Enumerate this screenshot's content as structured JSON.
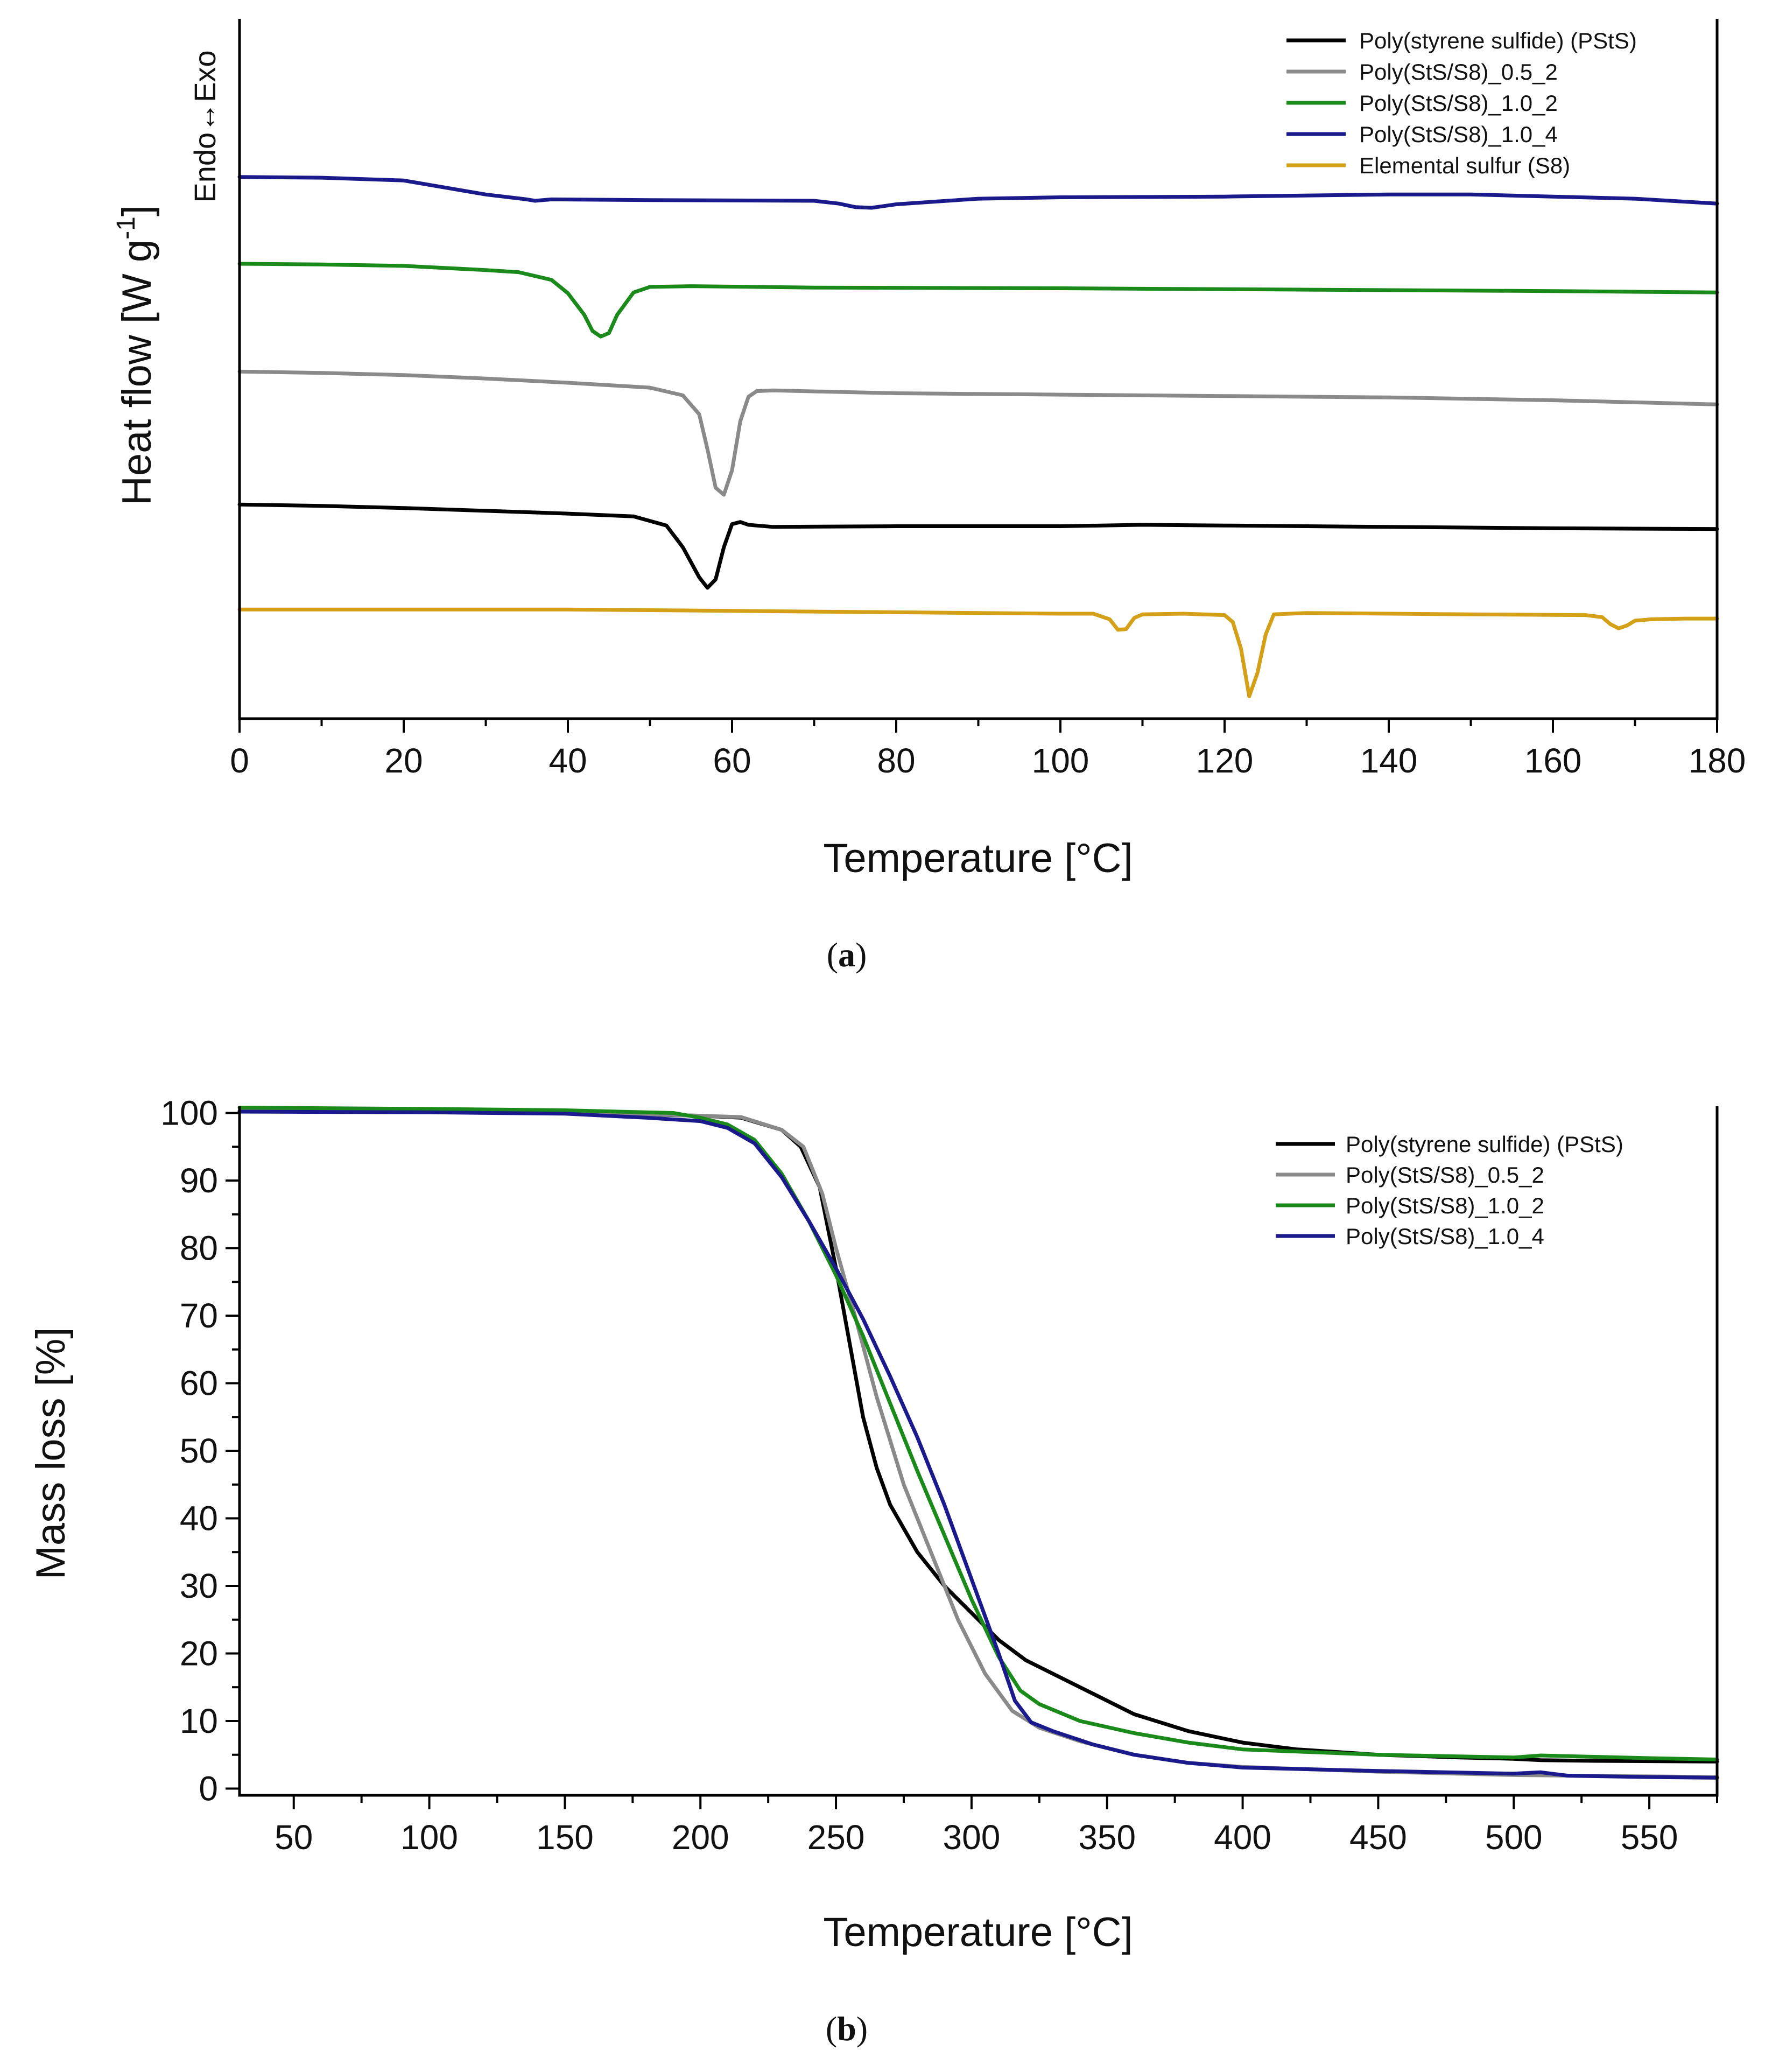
{
  "chart_data": [
    {
      "id": "a",
      "type": "line",
      "caption_label": "a",
      "xlabel": "Temperature [°C]",
      "ylabel": "Heat flow [W g",
      "ylabel_sup": "-1",
      "ylabel_suffix": "]",
      "direction_label": "Endo↔Exo",
      "xlim": [
        0,
        180
      ],
      "ylim": [
        0,
        100
      ],
      "xticks": [
        0,
        20,
        40,
        60,
        80,
        100,
        120,
        140,
        160,
        180
      ],
      "xticks_minor_step": 10,
      "y_ticks_shown": false,
      "legend_position": "top-right",
      "series": [
        {
          "name": "Poly(styrene sulfide) (PStS)",
          "color": "#000000",
          "points": [
            [
              0,
              30.6
            ],
            [
              10,
              30.4
            ],
            [
              20,
              30.1
            ],
            [
              30,
              29.7
            ],
            [
              40,
              29.3
            ],
            [
              48,
              28.9
            ],
            [
              52,
              27.6
            ],
            [
              54,
              24.5
            ],
            [
              56,
              20.2
            ],
            [
              57,
              18.7
            ],
            [
              58,
              19.9
            ],
            [
              59,
              24.5
            ],
            [
              60,
              27.8
            ],
            [
              61,
              28.1
            ],
            [
              62,
              27.7
            ],
            [
              65,
              27.4
            ],
            [
              80,
              27.5
            ],
            [
              100,
              27.5
            ],
            [
              110,
              27.7
            ],
            [
              120,
              27.6
            ],
            [
              140,
              27.4
            ],
            [
              160,
              27.2
            ],
            [
              180,
              27.1
            ]
          ]
        },
        {
          "name": "Poly(StS/S8)_0.5_2",
          "color": "#8a8a8a",
          "points": [
            [
              0,
              49.6
            ],
            [
              10,
              49.4
            ],
            [
              20,
              49.1
            ],
            [
              30,
              48.6
            ],
            [
              40,
              48.0
            ],
            [
              50,
              47.3
            ],
            [
              54,
              46.2
            ],
            [
              56,
              43.5
            ],
            [
              57,
              38.5
            ],
            [
              58,
              33.0
            ],
            [
              59,
              32.0
            ],
            [
              60,
              35.5
            ],
            [
              61,
              42.5
            ],
            [
              62,
              46.0
            ],
            [
              63,
              46.8
            ],
            [
              65,
              46.9
            ],
            [
              80,
              46.5
            ],
            [
              100,
              46.3
            ],
            [
              120,
              46.1
            ],
            [
              140,
              45.9
            ],
            [
              160,
              45.5
            ],
            [
              180,
              44.9
            ]
          ]
        },
        {
          "name": "Poly(StS/S8)_1.0_2",
          "color": "#1a8a1a",
          "points": [
            [
              0,
              65.0
            ],
            [
              10,
              64.9
            ],
            [
              20,
              64.7
            ],
            [
              30,
              64.1
            ],
            [
              34,
              63.8
            ],
            [
              38,
              62.7
            ],
            [
              40,
              60.8
            ],
            [
              42,
              57.7
            ],
            [
              43,
              55.4
            ],
            [
              44,
              54.6
            ],
            [
              45,
              55.1
            ],
            [
              46,
              57.7
            ],
            [
              48,
              60.9
            ],
            [
              50,
              61.7
            ],
            [
              55,
              61.8
            ],
            [
              70,
              61.6
            ],
            [
              100,
              61.5
            ],
            [
              130,
              61.3
            ],
            [
              160,
              61.1
            ],
            [
              180,
              60.9
            ]
          ]
        },
        {
          "name": "Poly(StS/S8)_1.0_4",
          "color": "#1a1a8c",
          "points": [
            [
              0,
              77.4
            ],
            [
              10,
              77.3
            ],
            [
              20,
              76.9
            ],
            [
              25,
              75.9
            ],
            [
              30,
              74.9
            ],
            [
              35,
              74.2
            ],
            [
              36,
              74.0
            ],
            [
              38,
              74.2
            ],
            [
              50,
              74.1
            ],
            [
              70,
              74.0
            ],
            [
              73,
              73.6
            ],
            [
              75,
              73.1
            ],
            [
              77,
              73.0
            ],
            [
              80,
              73.5
            ],
            [
              85,
              73.9
            ],
            [
              90,
              74.3
            ],
            [
              100,
              74.5
            ],
            [
              120,
              74.6
            ],
            [
              140,
              74.9
            ],
            [
              150,
              74.9
            ],
            [
              160,
              74.6
            ],
            [
              170,
              74.3
            ],
            [
              180,
              73.6
            ]
          ]
        },
        {
          "name": "Elemental sulfur (S8)",
          "color": "#d4a017",
          "points": [
            [
              0,
              15.6
            ],
            [
              20,
              15.6
            ],
            [
              40,
              15.6
            ],
            [
              60,
              15.4
            ],
            [
              80,
              15.2
            ],
            [
              100,
              15.0
            ],
            [
              104,
              15.0
            ],
            [
              106,
              14.2
            ],
            [
              107,
              12.7
            ],
            [
              108,
              12.8
            ],
            [
              109,
              14.4
            ],
            [
              110,
              14.9
            ],
            [
              115,
              15.0
            ],
            [
              120,
              14.8
            ],
            [
              121,
              13.8
            ],
            [
              122,
              10.0
            ],
            [
              123,
              3.2
            ],
            [
              124,
              6.5
            ],
            [
              125,
              12.0
            ],
            [
              126,
              14.9
            ],
            [
              130,
              15.1
            ],
            [
              150,
              14.9
            ],
            [
              164,
              14.8
            ],
            [
              166,
              14.5
            ],
            [
              167,
              13.5
            ],
            [
              168,
              12.9
            ],
            [
              169,
              13.3
            ],
            [
              170,
              14.0
            ],
            [
              172,
              14.2
            ],
            [
              176,
              14.3
            ],
            [
              180,
              14.3
            ]
          ]
        }
      ]
    },
    {
      "id": "b",
      "type": "line",
      "caption_label": "b",
      "xlabel": "Temperature [°C]",
      "ylabel": "Mass loss [%]",
      "xlim": [
        30,
        575
      ],
      "ylim": [
        -1,
        101
      ],
      "xticks": [
        50,
        100,
        150,
        200,
        250,
        300,
        350,
        400,
        450,
        500,
        550
      ],
      "xticks_minor_step": 25,
      "yticks": [
        0,
        10,
        20,
        30,
        40,
        50,
        60,
        70,
        80,
        90,
        100
      ],
      "yticks_minor_step": 5,
      "legend_position": "top-right",
      "series": [
        {
          "name": "Poly(styrene sulfide) (PStS)",
          "color": "#000000",
          "points": [
            [
              30,
              100.3
            ],
            [
              100,
              100.2
            ],
            [
              150,
              100.0
            ],
            [
              200,
              99.6
            ],
            [
              215,
              99.3
            ],
            [
              230,
              97.5
            ],
            [
              237,
              95.0
            ],
            [
              244,
              89.0
            ],
            [
              250,
              77.0
            ],
            [
              255,
              66.0
            ],
            [
              260,
              55.0
            ],
            [
              265,
              47.5
            ],
            [
              270,
              42.0
            ],
            [
              280,
              35.0
            ],
            [
              290,
              30.0
            ],
            [
              300,
              26.0
            ],
            [
              310,
              22.0
            ],
            [
              320,
              19.0
            ],
            [
              340,
              15.0
            ],
            [
              360,
              11.0
            ],
            [
              380,
              8.5
            ],
            [
              400,
              6.8
            ],
            [
              420,
              5.8
            ],
            [
              450,
              5.0
            ],
            [
              480,
              4.6
            ],
            [
              500,
              4.4
            ],
            [
              510,
              4.2
            ],
            [
              530,
              4.1
            ],
            [
              575,
              4.0
            ]
          ]
        },
        {
          "name": "Poly(StS/S8)_0.5_2",
          "color": "#8a8a8a",
          "points": [
            [
              30,
              100.3
            ],
            [
              100,
              100.2
            ],
            [
              150,
              100.1
            ],
            [
              200,
              99.6
            ],
            [
              215,
              99.4
            ],
            [
              230,
              97.5
            ],
            [
              238,
              95.0
            ],
            [
              245,
              88.0
            ],
            [
              250,
              80.0
            ],
            [
              257,
              70.0
            ],
            [
              265,
              58.0
            ],
            [
              275,
              45.0
            ],
            [
              285,
              35.0
            ],
            [
              295,
              25.0
            ],
            [
              305,
              17.0
            ],
            [
              315,
              11.5
            ],
            [
              325,
              9.0
            ],
            [
              340,
              7.0
            ],
            [
              360,
              5.0
            ],
            [
              380,
              3.8
            ],
            [
              400,
              3.2
            ],
            [
              450,
              2.5
            ],
            [
              500,
              2.0
            ],
            [
              550,
              1.8
            ],
            [
              575,
              1.7
            ]
          ]
        },
        {
          "name": "Poly(StS/S8)_1.0_2",
          "color": "#1a8a1a",
          "points": [
            [
              30,
              100.8
            ],
            [
              100,
              100.6
            ],
            [
              150,
              100.4
            ],
            [
              190,
              100.0
            ],
            [
              200,
              99.3
            ],
            [
              210,
              98.3
            ],
            [
              220,
              96.0
            ],
            [
              230,
              91.0
            ],
            [
              240,
              84.0
            ],
            [
              250,
              76.0
            ],
            [
              260,
              67.0
            ],
            [
              270,
              57.0
            ],
            [
              280,
              47.0
            ],
            [
              290,
              37.5
            ],
            [
              300,
              28.0
            ],
            [
              310,
              19.5
            ],
            [
              318,
              14.5
            ],
            [
              325,
              12.5
            ],
            [
              340,
              10.0
            ],
            [
              360,
              8.2
            ],
            [
              380,
              6.8
            ],
            [
              400,
              5.8
            ],
            [
              450,
              5.0
            ],
            [
              500,
              4.6
            ],
            [
              510,
              4.9
            ],
            [
              550,
              4.5
            ],
            [
              575,
              4.3
            ]
          ]
        },
        {
          "name": "Poly(StS/S8)_1.0_4",
          "color": "#1a1a8c",
          "points": [
            [
              30,
              100.2
            ],
            [
              100,
              100.1
            ],
            [
              150,
              99.9
            ],
            [
              180,
              99.3
            ],
            [
              200,
              98.8
            ],
            [
              210,
              97.8
            ],
            [
              220,
              95.5
            ],
            [
              230,
              90.5
            ],
            [
              240,
              84.0
            ],
            [
              250,
              77.0
            ],
            [
              260,
              69.5
            ],
            [
              270,
              61.0
            ],
            [
              280,
              52.0
            ],
            [
              290,
              42.0
            ],
            [
              300,
              31.0
            ],
            [
              310,
              20.0
            ],
            [
              316,
              13.0
            ],
            [
              322,
              9.8
            ],
            [
              330,
              8.5
            ],
            [
              345,
              6.5
            ],
            [
              360,
              5.0
            ],
            [
              380,
              3.8
            ],
            [
              400,
              3.1
            ],
            [
              450,
              2.6
            ],
            [
              500,
              2.2
            ],
            [
              510,
              2.4
            ],
            [
              520,
              1.9
            ],
            [
              550,
              1.7
            ],
            [
              575,
              1.6
            ]
          ]
        }
      ]
    }
  ]
}
